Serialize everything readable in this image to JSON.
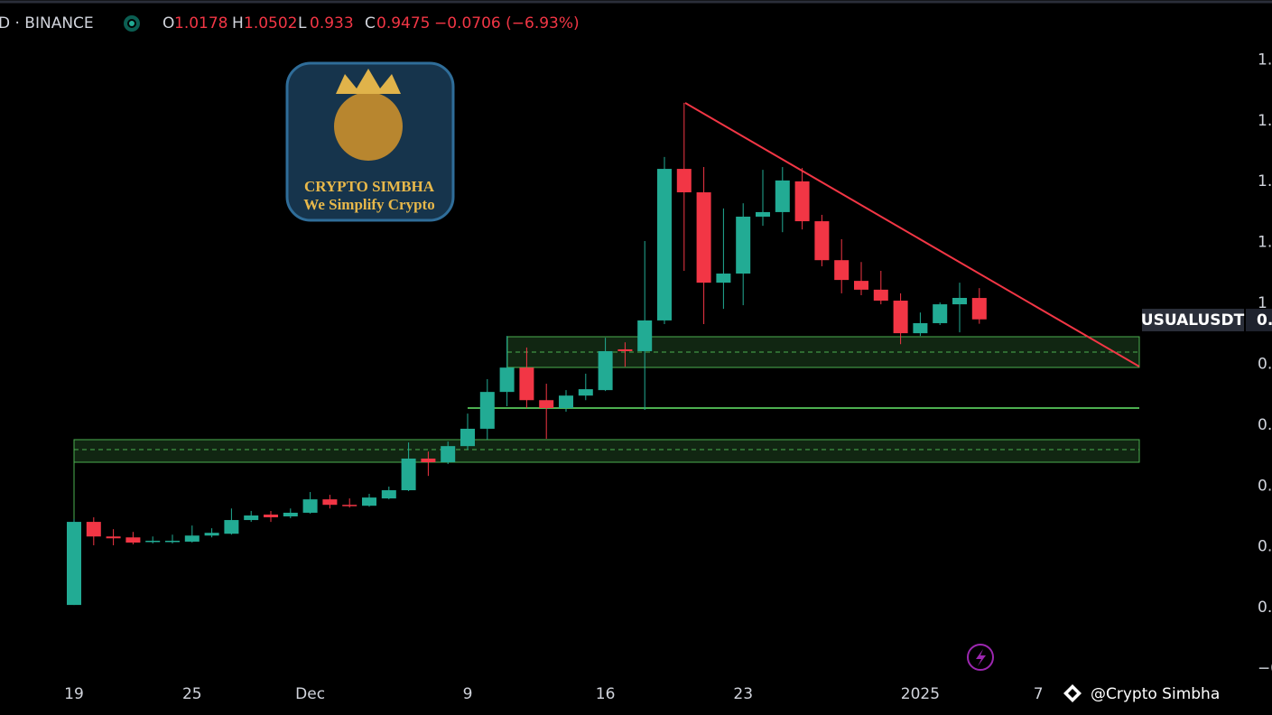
{
  "header": {
    "symbol": "D · BINANCE",
    "ohlc_labels": [
      "O",
      "H",
      "L",
      "C"
    ],
    "change": "−0.0706 (−6.93%)"
  },
  "logo": {
    "title": "CRYPTO SIMBHA",
    "tagline": "We Simplify Crypto"
  },
  "price_tag": {
    "symbol": "USUALUSDT",
    "value": "0."
  },
  "watermark": "@Crypto Simbha",
  "chart_data": {
    "type": "candlestick",
    "categories": [
      "19",
      null,
      null,
      null,
      null,
      null,
      "25",
      null,
      null,
      null,
      null,
      null,
      "Dec",
      null,
      null,
      null,
      null,
      null,
      null,
      null,
      "9",
      null,
      null,
      null,
      null,
      null,
      null,
      "16",
      null,
      null,
      null,
      null,
      null,
      null,
      "23",
      null,
      null,
      null,
      null,
      null,
      null,
      null,
      null,
      "2025",
      null,
      null,
      null,
      null,
      null,
      "7"
    ],
    "open": [
      0.009,
      0.282,
      0.234,
      0.231,
      0.217,
      0.217,
      0.217,
      0.237,
      0.243,
      0.288,
      0.306,
      0.3,
      0.312,
      0.356,
      0.338,
      0.335,
      0.359,
      0.386,
      0.49,
      0.478,
      0.531,
      0.588,
      0.709,
      0.789,
      0.682,
      0.656,
      0.697,
      0.715,
      0.849,
      0.843,
      0.944,
      1.442,
      1.365,
      1.068,
      1.098,
      1.285,
      1.3,
      1.401,
      1.27,
      1.142,
      1.074,
      1.045,
      1.009,
      0.902,
      0.935,
      0.997,
      1.0178,
      null,
      null,
      null
    ],
    "high": [
      0.291,
      0.297,
      0.258,
      0.249,
      0.234,
      0.24,
      0.27,
      0.261,
      0.326,
      0.318,
      0.318,
      0.326,
      0.38,
      0.371,
      0.359,
      0.374,
      0.398,
      0.543,
      0.513,
      0.546,
      0.638,
      0.751,
      0.893,
      0.855,
      0.736,
      0.715,
      0.769,
      0.887,
      0.872,
      1.205,
      1.481,
      1.659,
      1.448,
      1.312,
      1.329,
      1.439,
      1.448,
      1.445,
      1.291,
      1.211,
      1.136,
      1.107,
      1.033,
      0.97,
      1.003,
      1.068,
      1.0502,
      null,
      null,
      null
    ],
    "low": [
      0.009,
      0.205,
      0.205,
      0.208,
      0.211,
      0.211,
      0.214,
      0.231,
      0.24,
      0.282,
      0.282,
      0.294,
      0.309,
      0.326,
      0.329,
      0.332,
      0.356,
      0.383,
      0.433,
      0.472,
      0.519,
      0.552,
      0.662,
      0.656,
      0.555,
      0.644,
      0.682,
      0.712,
      0.792,
      0.65,
      0.932,
      1.107,
      0.932,
      0.982,
      0.994,
      1.255,
      1.234,
      1.243,
      1.122,
      1.033,
      1.027,
      0.997,
      0.866,
      0.893,
      0.929,
      0.905,
      0.933,
      null,
      null,
      null
    ],
    "close": [
      0.282,
      0.234,
      0.228,
      0.214,
      0.22,
      0.22,
      0.237,
      0.246,
      0.288,
      0.303,
      0.297,
      0.312,
      0.356,
      0.338,
      0.335,
      0.362,
      0.386,
      0.49,
      0.478,
      0.531,
      0.588,
      0.709,
      0.789,
      0.682,
      0.656,
      0.697,
      0.718,
      0.843,
      0.843,
      0.944,
      1.442,
      1.365,
      1.068,
      1.098,
      1.285,
      1.3,
      1.404,
      1.27,
      1.142,
      1.077,
      1.045,
      1.009,
      0.902,
      0.935,
      0.997,
      1.018,
      0.9475,
      null,
      null,
      null
    ],
    "up_color": "#22ab94",
    "down_color": "#f23645",
    "ylim": [
      -0.234,
      1.997
    ],
    "yticks": [
      {
        "value": 1.8,
        "label": "1."
      },
      {
        "value": 1.6,
        "label": "1."
      },
      {
        "value": 1.4,
        "label": "1."
      },
      {
        "value": 1.2,
        "label": "1."
      },
      {
        "value": 1,
        "label": "1"
      },
      {
        "value": 0.8,
        "label": "0."
      },
      {
        "value": 0.6,
        "label": "0."
      },
      {
        "value": 0.4,
        "label": "0."
      },
      {
        "value": 0.2,
        "label": "0."
      },
      {
        "value": 0,
        "label": "0."
      },
      {
        "value": -0.2,
        "label": "−0"
      }
    ]
  }
}
